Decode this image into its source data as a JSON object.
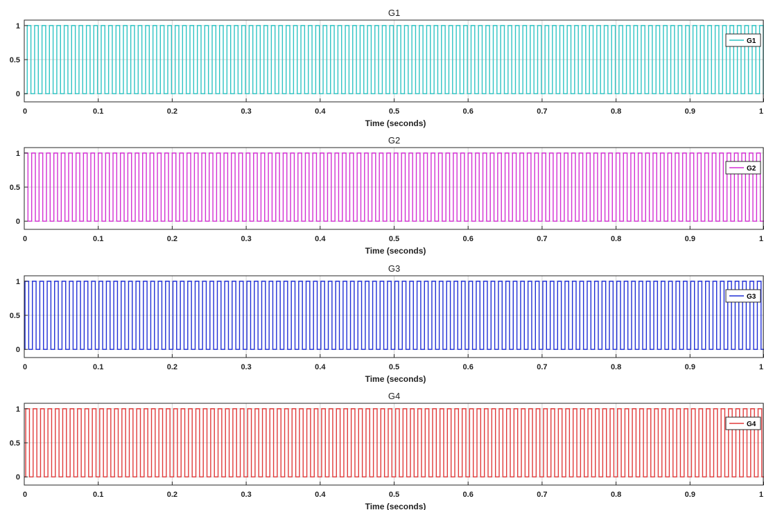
{
  "chart_data": [
    {
      "type": "line",
      "title": "G1",
      "xlabel": "Time (seconds)",
      "ylabel": "",
      "xlim": [
        0,
        1
      ],
      "ylim": [
        -0.12,
        1.08
      ],
      "x_ticks": [
        "0",
        "0.1",
        "0.2",
        "0.3",
        "0.4",
        "0.5",
        "0.6",
        "0.7",
        "0.8",
        "0.9",
        "1"
      ],
      "y_ticks": [
        "0",
        "0.5",
        "1"
      ],
      "grid": true,
      "legend_position": "right",
      "series": [
        {
          "name": "G1",
          "color": "#2ec4c4",
          "signal": "square_pulse",
          "period": 0.01,
          "phase": 0.004,
          "low": 0,
          "high": 1,
          "duty": 0.5
        }
      ]
    },
    {
      "type": "line",
      "title": "G2",
      "xlabel": "Time (seconds)",
      "ylabel": "",
      "xlim": [
        0,
        1
      ],
      "ylim": [
        -0.12,
        1.08
      ],
      "x_ticks": [
        "0",
        "0.1",
        "0.2",
        "0.3",
        "0.4",
        "0.5",
        "0.6",
        "0.7",
        "0.8",
        "0.9",
        "1"
      ],
      "y_ticks": [
        "0",
        "0.5",
        "1"
      ],
      "grid": true,
      "legend_position": "right",
      "series": [
        {
          "name": "G2",
          "color": "#d32fd3",
          "signal": "square_pulse",
          "period": 0.01,
          "phase": 0.0,
          "low": 0,
          "high": 1,
          "duty": 0.5
        }
      ]
    },
    {
      "type": "line",
      "title": "G3",
      "xlabel": "Time (seconds)",
      "ylabel": "",
      "xlim": [
        0,
        1
      ],
      "ylim": [
        -0.12,
        1.08
      ],
      "x_ticks": [
        "0",
        "0.1",
        "0.2",
        "0.3",
        "0.4",
        "0.5",
        "0.6",
        "0.7",
        "0.8",
        "0.9",
        "1"
      ],
      "y_ticks": [
        "0",
        "0.5",
        "1"
      ],
      "grid": true,
      "legend_position": "right",
      "series": [
        {
          "name": "G3",
          "color": "#1f2ed6",
          "signal": "square_pulse",
          "period": 0.01,
          "phase": 0.001,
          "low": 0,
          "high": 1,
          "duty": 0.5
        }
      ]
    },
    {
      "type": "line",
      "title": "G4",
      "xlabel": "Time (seconds)",
      "ylabel": "",
      "xlim": [
        0,
        1
      ],
      "ylim": [
        -0.12,
        1.08
      ],
      "x_ticks": [
        "0",
        "0.1",
        "0.2",
        "0.3",
        "0.4",
        "0.5",
        "0.6",
        "0.7",
        "0.8",
        "0.9",
        "1"
      ],
      "y_ticks": [
        "0",
        "0.5",
        "1"
      ],
      "grid": true,
      "legend_position": "right",
      "series": [
        {
          "name": "G4",
          "color": "#e03a3a",
          "signal": "square_pulse",
          "period": 0.01,
          "phase": 0.002,
          "low": 0,
          "high": 1,
          "duty": 0.5
        }
      ]
    }
  ]
}
